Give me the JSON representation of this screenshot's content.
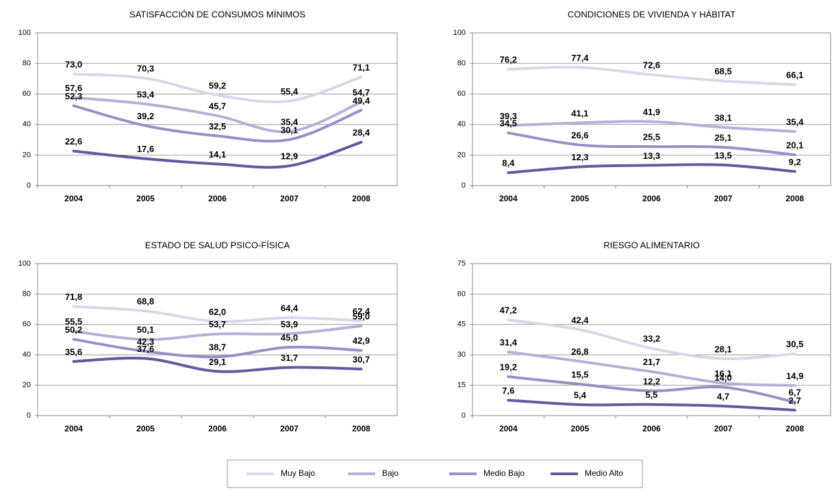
{
  "chart_data": [
    {
      "type": "line",
      "title": "SATISFACCIÓN DE CONSUMOS MÍNIMOS",
      "categories": [
        "2004",
        "2005",
        "2006",
        "2007",
        "2008"
      ],
      "ylim": [
        0,
        100
      ],
      "yticks": [
        0,
        20,
        40,
        60,
        80,
        100
      ],
      "grid": true,
      "series": [
        {
          "name": "Muy Bajo",
          "color": "#d8d6ea",
          "values": [
            73.0,
            70.3,
            59.2,
            55.4,
            71.1
          ],
          "value_labels": [
            "73,0",
            "70,3",
            "59,2",
            "55,4",
            "71,1"
          ]
        },
        {
          "name": "Bajo",
          "color": "#b4b1d8",
          "values": [
            57.6,
            53.4,
            45.7,
            35.4,
            54.7
          ],
          "value_labels": [
            "57,6",
            "53,4",
            "45,7",
            "35,4",
            "54,7"
          ]
        },
        {
          "name": "Medio Bajo",
          "color": "#9491c6",
          "values": [
            52.3,
            39.2,
            32.5,
            30.1,
            49.4
          ],
          "value_labels": [
            "52,3",
            "39,2",
            "32,5",
            "30,1",
            "49,4"
          ]
        },
        {
          "name": "Medio Alto",
          "color": "#605ba0",
          "values": [
            22.6,
            17.6,
            14.1,
            12.9,
            28.4
          ],
          "value_labels": [
            "22,6",
            "17,6",
            "14,1",
            "12,9",
            "28,4"
          ]
        }
      ]
    },
    {
      "type": "line",
      "title": "CONDICIONES DE VIVIENDA Y HÁBITAT",
      "categories": [
        "2004",
        "2005",
        "2006",
        "2007",
        "2008"
      ],
      "ylim": [
        0,
        100
      ],
      "yticks": [
        0,
        20,
        40,
        60,
        80,
        100
      ],
      "grid": true,
      "series": [
        {
          "name": "Muy Bajo",
          "color": "#d8d6ea",
          "values": [
            76.2,
            77.4,
            72.6,
            68.5,
            66.1
          ],
          "value_labels": [
            "76,2",
            "77,4",
            "72,6",
            "68,5",
            "66,1"
          ]
        },
        {
          "name": "Bajo",
          "color": "#b4b1d8",
          "values": [
            39.3,
            41.1,
            41.9,
            38.1,
            35.4
          ],
          "value_labels": [
            "39,3",
            "41,1",
            "41,9",
            "38,1",
            "35,4"
          ]
        },
        {
          "name": "Medio Bajo",
          "color": "#9491c6",
          "values": [
            34.5,
            26.6,
            25.5,
            25.1,
            20.1
          ],
          "value_labels": [
            "34,5",
            "26,6",
            "25,5",
            "25,1",
            "20,1"
          ]
        },
        {
          "name": "Medio Alto",
          "color": "#605ba0",
          "values": [
            8.4,
            12.3,
            13.3,
            13.5,
            9.2
          ],
          "value_labels": [
            "8,4",
            "12,3",
            "13,3",
            "13,5",
            "9,2"
          ]
        }
      ]
    },
    {
      "type": "line",
      "title": "ESTADO DE SALUD PSICO-FÍSICA",
      "categories": [
        "2004",
        "2005",
        "2006",
        "2007",
        "2008"
      ],
      "ylim": [
        0,
        100
      ],
      "yticks": [
        0,
        20,
        40,
        60,
        80,
        100
      ],
      "grid": true,
      "series": [
        {
          "name": "Muy Bajo",
          "color": "#d8d6ea",
          "values": [
            71.8,
            68.8,
            62.0,
            64.4,
            62.4
          ],
          "value_labels": [
            "71,8",
            "68,8",
            "62,0",
            "64,4",
            "62,4"
          ]
        },
        {
          "name": "Bajo",
          "color": "#b4b1d8",
          "values": [
            55.5,
            50.1,
            53.7,
            53.9,
            59.0
          ],
          "value_labels": [
            "55,5",
            "50,1",
            "53,7",
            "53,9",
            "59,0"
          ]
        },
        {
          "name": "Medio Bajo",
          "color": "#9491c6",
          "values": [
            50.2,
            42.3,
            38.7,
            45.0,
            42.9
          ],
          "value_labels": [
            "50,2",
            "42,3",
            "38,7",
            "45,0",
            "42,9"
          ]
        },
        {
          "name": "Medio Alto",
          "color": "#605ba0",
          "values": [
            35.6,
            37.6,
            29.1,
            31.7,
            30.7
          ],
          "value_labels": [
            "35,6",
            "37,6",
            "29,1",
            "31,7",
            "30,7"
          ]
        }
      ]
    },
    {
      "type": "line",
      "title": "RIESGO ALIMENTARIO",
      "categories": [
        "2004",
        "2005",
        "2006",
        "2007",
        "2008"
      ],
      "ylim": [
        0,
        75
      ],
      "yticks": [
        0,
        15,
        30,
        45,
        60,
        75
      ],
      "grid": true,
      "series": [
        {
          "name": "Muy Bajo",
          "color": "#d8d6ea",
          "values": [
            47.2,
            42.4,
            33.2,
            28.1,
            30.5
          ],
          "value_labels": [
            "47,2",
            "42,4",
            "33,2",
            "28,1",
            "30,5"
          ]
        },
        {
          "name": "Bajo",
          "color": "#b4b1d8",
          "values": [
            31.4,
            26.8,
            21.7,
            16.1,
            14.9
          ],
          "value_labels": [
            "31,4",
            "26,8",
            "21,7",
            "16,1",
            "14,9"
          ]
        },
        {
          "name": "Medio Bajo",
          "color": "#9491c6",
          "values": [
            19.2,
            15.5,
            12.2,
            14.0,
            6.7
          ],
          "value_labels": [
            "19,2",
            "15,5",
            "12,2",
            "14,0",
            "6,7"
          ]
        },
        {
          "name": "Medio Alto",
          "color": "#605ba0",
          "values": [
            7.6,
            5.4,
            5.5,
            4.7,
            2.7
          ],
          "value_labels": [
            "7,6",
            "5,4",
            "5,5",
            "4,7",
            "2,7"
          ]
        }
      ]
    }
  ]
}
